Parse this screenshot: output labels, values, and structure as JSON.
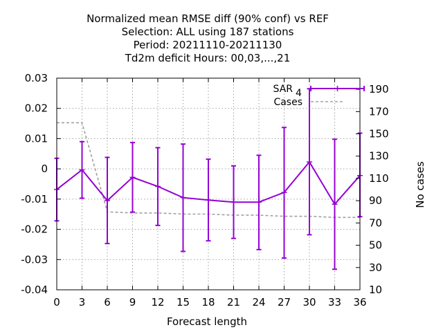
{
  "chart_data": {
    "type": "line",
    "title_lines": [
      "Normalized mean RMSE diff (90% conf) vs REF",
      "Selection: ALL using   187 stations",
      "Period: 20211110-20211130",
      "Td2m deficit   Hours:  00,03,...,21"
    ],
    "xlabel": "Forecast length",
    "ylabel_right": "No cases",
    "xlim": [
      0,
      36
    ],
    "ylim": [
      -0.04,
      0.03
    ],
    "y2lim": [
      10,
      200
    ],
    "x_ticks": [
      0,
      3,
      6,
      9,
      12,
      15,
      18,
      21,
      24,
      27,
      30,
      33,
      36
    ],
    "y_ticks": [
      -0.04,
      -0.03,
      -0.02,
      -0.01,
      0,
      0.01,
      0.02,
      0.03
    ],
    "y_tick_labels": [
      "-0.04",
      "-0.03",
      "-0.02",
      "-0.01",
      "0",
      "0.01",
      "0.02",
      "0.03"
    ],
    "y2_ticks": [
      10,
      30,
      50,
      70,
      90,
      110,
      130,
      150,
      170,
      190
    ],
    "grid": true,
    "legend_position": "top-right",
    "series": [
      {
        "name": "SAR",
        "name_subscript": "4",
        "color": "#9400d3",
        "axis": "left",
        "x": [
          0,
          3,
          6,
          9,
          12,
          15,
          18,
          21,
          24,
          27,
          30,
          33,
          36
        ],
        "values": [
          -0.0068,
          -0.0003,
          -0.0105,
          -0.0028,
          -0.0058,
          -0.0095,
          -0.0103,
          -0.011,
          -0.011,
          -0.0078,
          0.0023,
          -0.0117,
          -0.0022
        ],
        "err_low": [
          -0.0172,
          -0.0097,
          -0.0247,
          -0.0143,
          -0.0187,
          -0.0273,
          -0.0238,
          -0.023,
          -0.0267,
          -0.0295,
          -0.0218,
          -0.0332,
          -0.0158
        ],
        "err_high": [
          0.0035,
          0.009,
          0.0038,
          0.0087,
          0.007,
          0.0082,
          0.0032,
          0.001,
          0.0045,
          0.0137,
          0.0265,
          0.0098,
          0.0118
        ]
      },
      {
        "name": "Cases",
        "color": "#a0a0a0",
        "axis": "right",
        "x": [
          0,
          3,
          6,
          9,
          12,
          15,
          18,
          21,
          24,
          27,
          30,
          33,
          36
        ],
        "values": [
          160,
          160,
          80,
          79,
          79,
          78,
          78,
          77,
          77,
          76,
          76,
          75,
          75
        ]
      }
    ]
  }
}
